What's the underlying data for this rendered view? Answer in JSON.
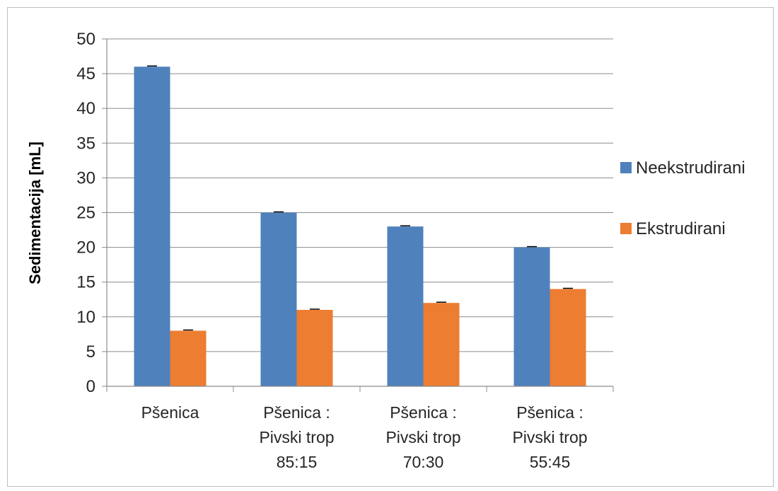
{
  "chart_data": {
    "type": "bar",
    "categories": [
      [
        "Pšenica"
      ],
      [
        "Pšenica :",
        "Pivski trop",
        "85:15"
      ],
      [
        "Pšenica :",
        "Pivski trop",
        "70:30"
      ],
      [
        "Pšenica :",
        "Pivski trop",
        "55:45"
      ]
    ],
    "series": [
      {
        "name": "Neekstrudirani",
        "color": "#4f81bd",
        "values": [
          46,
          25,
          23,
          20
        ]
      },
      {
        "name": "Ekstrudirani",
        "color": "#ec7d31",
        "values": [
          8,
          11,
          12,
          14
        ]
      }
    ],
    "ylabel": "Sedimentacija [mL]",
    "ylim": [
      0,
      50
    ],
    "yticks": [
      0,
      5,
      10,
      15,
      20,
      25,
      30,
      35,
      40,
      45,
      50
    ],
    "grid": true,
    "error_bars": true,
    "legend_position": "right"
  }
}
